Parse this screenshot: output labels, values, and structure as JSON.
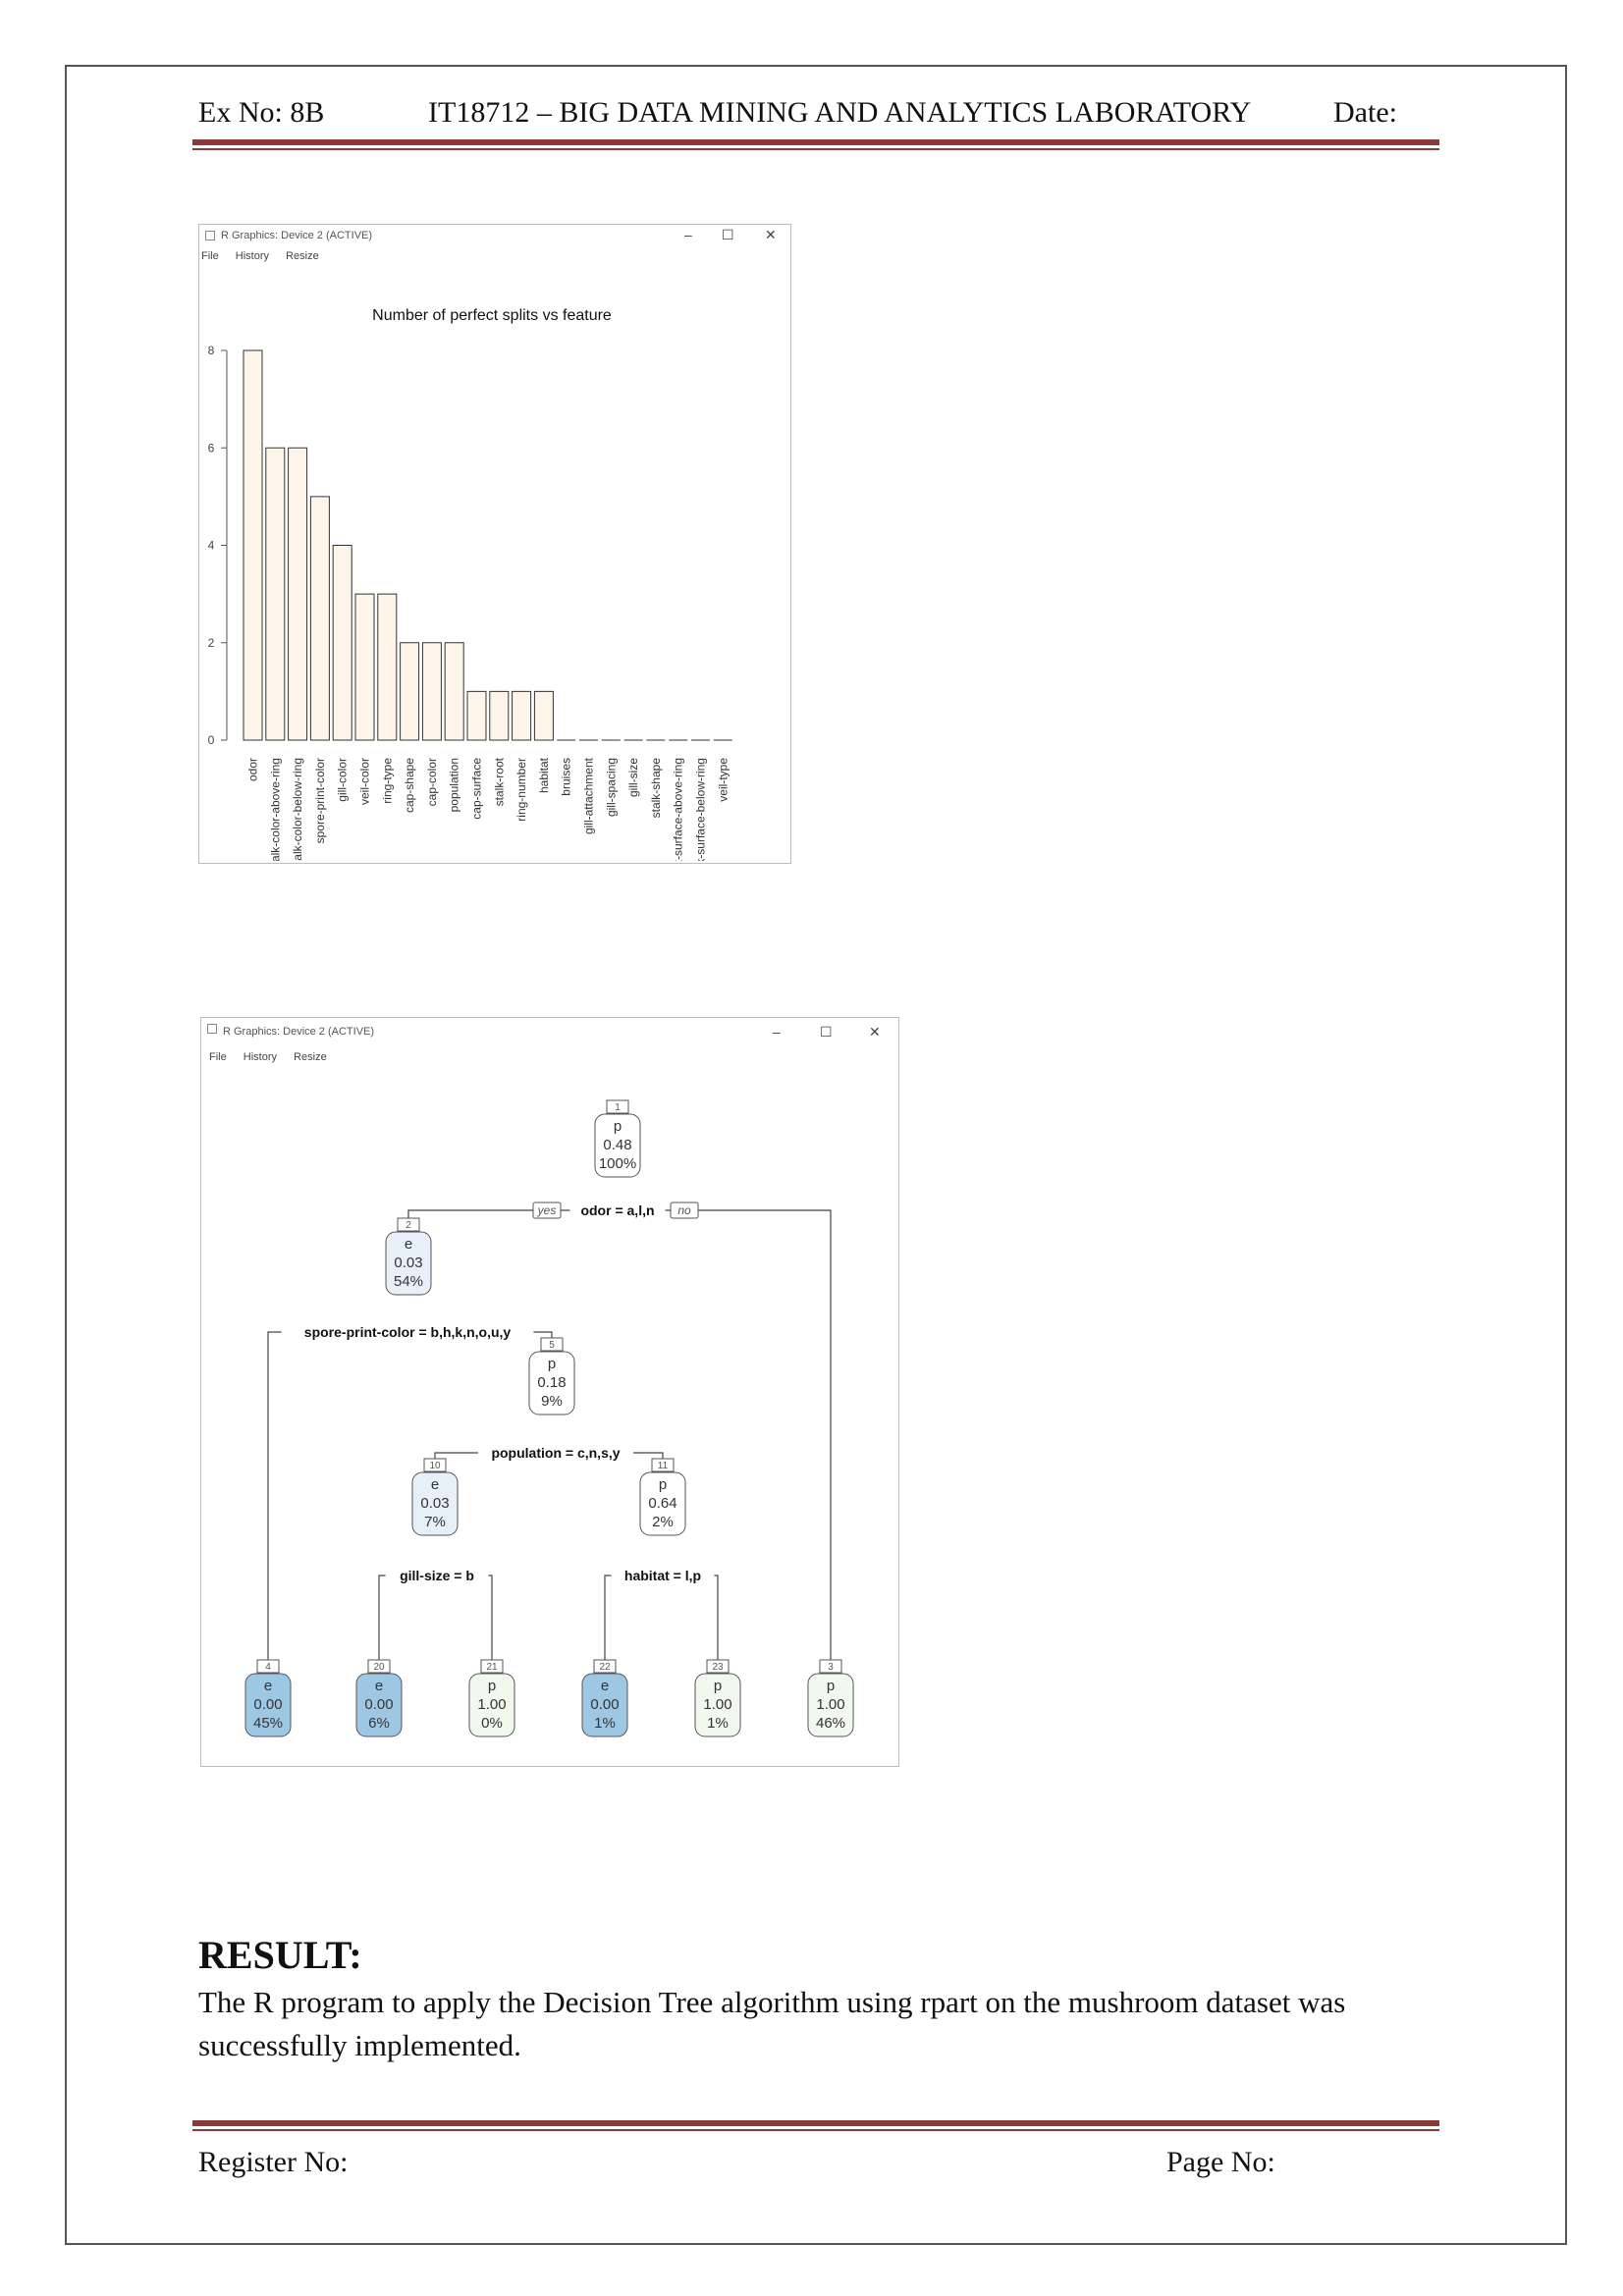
{
  "header": {
    "ex_no": "Ex No: 8B",
    "course": "IT18712 – BIG DATA MINING AND ANALYTICS LABORATORY",
    "date": "Date:"
  },
  "window1": {
    "title": "R Graphics: Device 2 (ACTIVE)",
    "menu": [
      "File",
      "History",
      "Resize"
    ],
    "controls": [
      "–",
      "☐",
      "✕"
    ]
  },
  "window2": {
    "title": "R Graphics: Device 2 (ACTIVE)",
    "menu": [
      "File",
      "History",
      "Resize"
    ],
    "controls": [
      "–",
      "☐",
      "✕"
    ]
  },
  "chart_data": {
    "type": "bar",
    "title": "Number of perfect splits vs feature",
    "xlabel": "",
    "ylabel": "",
    "ylim": [
      0,
      8
    ],
    "yticks": [
      0,
      2,
      4,
      6,
      8
    ],
    "bar_color": "#fdf5ea",
    "categories": [
      "odor",
      "stalk-color-above-ring",
      "stalk-color-below-ring",
      "spore-print-color",
      "gill-color",
      "veil-color",
      "ring-type",
      "cap-shape",
      "cap-color",
      "population",
      "cap-surface",
      "stalk-root",
      "ring-number",
      "habitat",
      "bruises",
      "gill-attachment",
      "gill-spacing",
      "gill-size",
      "stalk-shape",
      "stalk-surface-above-ring",
      "stalk-surface-below-ring",
      "veil-type"
    ],
    "values": [
      8,
      6,
      6,
      5,
      4,
      3,
      3,
      2,
      2,
      2,
      1,
      1,
      1,
      1,
      0,
      0,
      0,
      0,
      0,
      0,
      0,
      0
    ]
  },
  "tree": {
    "yes_label": "yes",
    "no_label": "no",
    "colors": {
      "e_dark": "#9ec7e4",
      "e_light": "#e7f0f8",
      "p_light": "#f1f8ee",
      "p_white": "#ffffff"
    },
    "nodes": [
      {
        "id": "1",
        "cls": "p",
        "prob": "0.48",
        "pct": "100%"
      },
      {
        "id": "2",
        "cls": "e",
        "prob": "0.03",
        "pct": "54%"
      },
      {
        "id": "5",
        "cls": "p",
        "prob": "0.18",
        "pct": "9%"
      },
      {
        "id": "10",
        "cls": "e",
        "prob": "0.03",
        "pct": "7%"
      },
      {
        "id": "11",
        "cls": "p",
        "prob": "0.64",
        "pct": "2%"
      },
      {
        "id": "4",
        "cls": "e",
        "prob": "0.00",
        "pct": "45%"
      },
      {
        "id": "20",
        "cls": "e",
        "prob": "0.00",
        "pct": "6%"
      },
      {
        "id": "21",
        "cls": "p",
        "prob": "1.00",
        "pct": "0%"
      },
      {
        "id": "22",
        "cls": "e",
        "prob": "0.00",
        "pct": "1%"
      },
      {
        "id": "23",
        "cls": "p",
        "prob": "1.00",
        "pct": "1%"
      },
      {
        "id": "3",
        "cls": "p",
        "prob": "1.00",
        "pct": "46%"
      }
    ],
    "splits": [
      "odor = a,l,n",
      "spore-print-color = b,h,k,n,o,u,y",
      "population = c,n,s,y",
      "gill-size = b",
      "habitat = l,p"
    ]
  },
  "result": {
    "heading": "RESULT:",
    "text": "The R program to apply the Decision Tree algorithm using rpart on the mushroom dataset was successfully implemented."
  },
  "footer": {
    "register": "Register No:",
    "page": "Page No:"
  }
}
